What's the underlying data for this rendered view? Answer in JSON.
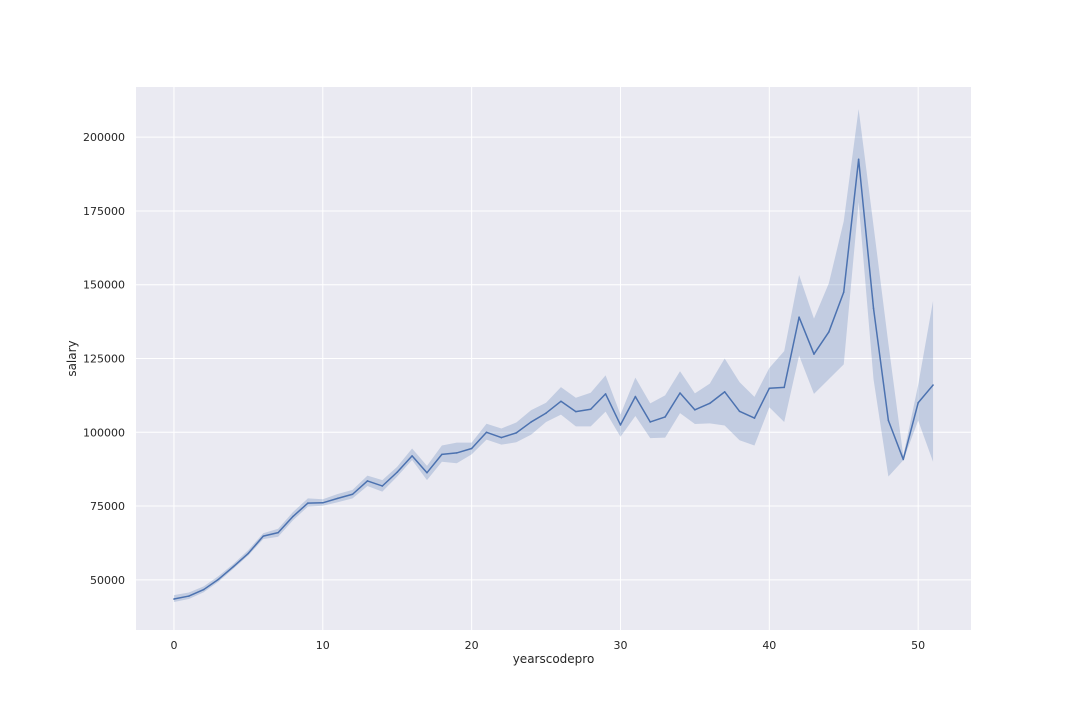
{
  "chart_data": {
    "type": "line",
    "xlabel": "yearscodepro",
    "ylabel": "salary",
    "xlim": [
      -2.55,
      53.55
    ],
    "ylim": [
      33000,
      217000
    ],
    "xticks": [
      0,
      10,
      20,
      30,
      40,
      50
    ],
    "yticks": [
      50000,
      75000,
      100000,
      125000,
      150000,
      175000,
      200000
    ],
    "grid": true,
    "colors": {
      "line": "#4c72b0",
      "band": "#4c72b0",
      "background": "#eaeaf2",
      "grid": "#ffffff"
    },
    "series": [
      {
        "x": [
          0,
          1,
          2,
          3,
          4,
          5,
          6,
          7,
          8,
          9,
          10,
          11,
          12,
          13,
          14,
          15,
          16,
          17,
          18,
          19,
          20,
          21,
          22,
          23,
          24,
          25,
          26,
          27,
          28,
          29,
          30,
          31,
          32,
          33,
          34,
          35,
          36,
          37,
          38,
          39,
          40,
          41,
          42,
          43,
          44,
          45,
          46,
          47,
          48,
          49,
          50,
          51
        ],
        "y": [
          43500,
          44500,
          46700,
          50200,
          54500,
          59000,
          64800,
          66000,
          71500,
          76000,
          76100,
          77600,
          79000,
          83500,
          81800,
          86500,
          92000,
          86300,
          92500,
          93000,
          94500,
          100000,
          98200,
          99800,
          103500,
          106500,
          110500,
          107000,
          107800,
          113000,
          102500,
          112100,
          103500,
          105200,
          113300,
          107600,
          109800,
          113700,
          107100,
          104800,
          114900,
          115200,
          139000,
          126500,
          134000,
          147500,
          192500,
          142000,
          104000,
          90800,
          110000,
          116000
        ],
        "ci_lower": [
          42500,
          43500,
          45800,
          49400,
          53800,
          58300,
          63800,
          64600,
          70200,
          74800,
          75100,
          76300,
          77600,
          81800,
          79900,
          85000,
          90600,
          83800,
          90000,
          89500,
          92500,
          97500,
          95800,
          96600,
          99200,
          103500,
          106000,
          102000,
          102000,
          107000,
          98500,
          105500,
          98000,
          98200,
          106500,
          102800,
          103000,
          102300,
          97300,
          95500,
          108500,
          103500,
          126000,
          113000,
          118000,
          123000,
          178000,
          118000,
          85000,
          90500,
          104000,
          90000
        ],
        "ci_upper": [
          44800,
          45700,
          47800,
          51300,
          55400,
          60100,
          65800,
          67300,
          73000,
          77600,
          77300,
          79100,
          80500,
          85300,
          83800,
          88300,
          94500,
          88600,
          95500,
          96500,
          96500,
          102900,
          101300,
          103300,
          107500,
          110000,
          115300,
          111700,
          113400,
          119300,
          106000,
          118500,
          109800,
          112500,
          120700,
          113200,
          116500,
          125000,
          117000,
          112000,
          121800,
          127500,
          153300,
          138500,
          150500,
          171500,
          209500,
          170000,
          130000,
          92000,
          116000,
          144500
        ]
      }
    ]
  }
}
